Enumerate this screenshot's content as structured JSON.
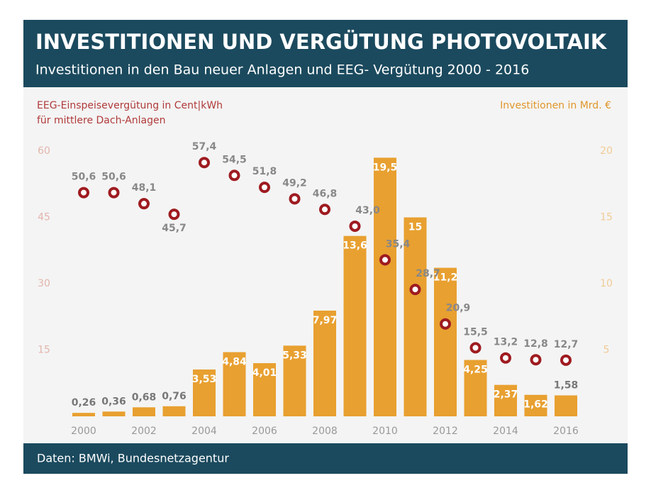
{
  "chart_data": {
    "type": "combo",
    "title": "INVESTITIONEN UND VERGÜTUNG PHOTOVOLTAIK",
    "subtitle": "Investitionen in den Bau neuer Anlagen und EEG- Vergütung 2000 - 2016",
    "y_label": [
      "EEG-Einspeisevergütung in Cent|kWh",
      "für mittlere Dach-Anlagen"
    ],
    "y2_label": "Investitionen in Mrd. €",
    "source": "Daten: BMWi, Bundesnetzagentur",
    "categories": [
      "2000",
      null,
      "2002",
      null,
      "2004",
      null,
      "2006",
      null,
      "2008",
      null,
      "2010",
      null,
      "2012",
      null,
      "2014",
      null,
      "2016"
    ],
    "ylim": [
      0,
      60
    ],
    "yticks": [
      15,
      30,
      45,
      60
    ],
    "y2lim": [
      0,
      20
    ],
    "y2ticks": [
      5,
      10,
      15,
      20
    ],
    "series": [
      {
        "name": "Investitionen in Mrd. €",
        "type": "bar",
        "axis": "y2",
        "color": "#e8a030",
        "values": [
          0.26,
          0.36,
          0.68,
          0.76,
          3.53,
          4.84,
          4.01,
          5.33,
          7.97,
          13.6,
          19.5,
          15,
          11.2,
          4.25,
          2.37,
          1.62,
          1.58
        ],
        "value_labels": [
          "0,26",
          "0,36",
          "0,68",
          "0,76",
          "3,53",
          "4,84",
          "4,01",
          "5,33",
          "7,97",
          "13,6",
          "19,5",
          "15",
          "11,2",
          "4,25",
          "2,37",
          "1,62",
          "1,58"
        ]
      },
      {
        "name": "EEG-Einspeisevergütung in Cent|kWh",
        "type": "line",
        "axis": "y",
        "color": "#9e1b20",
        "values": [
          50.6,
          50.6,
          48.1,
          45.7,
          57.4,
          54.5,
          51.8,
          49.2,
          46.8,
          43.0,
          35.4,
          28.7,
          20.9,
          15.5,
          13.2,
          12.8,
          12.7
        ],
        "value_labels": [
          "50,6",
          "50,6",
          "48,1",
          "45,7",
          "57,4",
          "54,5",
          "51,8",
          "49,2",
          "46,8",
          "43,0",
          "35,4",
          "28,7",
          "20,9",
          "15,5",
          "13,2",
          "12,8",
          "12,7"
        ]
      }
    ]
  }
}
